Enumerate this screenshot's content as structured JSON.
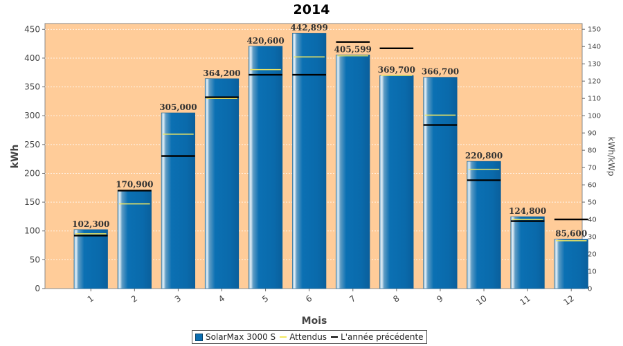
{
  "chart_data": {
    "type": "bar",
    "title": "2014",
    "xlabel": "Mois",
    "ylabel": "kWh",
    "ylabel_right": "kWh/kWp",
    "ylim": [
      0,
      460
    ],
    "ylim_right": [
      0,
      153.3
    ],
    "yticks": [
      0,
      50,
      100,
      150,
      200,
      250,
      300,
      350,
      400,
      450
    ],
    "yticks_right": [
      0,
      10,
      20,
      30,
      40,
      50,
      60,
      70,
      80,
      90,
      100,
      110,
      120,
      130,
      140,
      150
    ],
    "categories": [
      "1",
      "2",
      "3",
      "4",
      "5",
      "6",
      "7",
      "8",
      "9",
      "10",
      "11",
      "12"
    ],
    "series": [
      {
        "name": "SolarMax 3000 S",
        "kind": "bar",
        "color": "#0a6db0",
        "values": [
          102.3,
          170.9,
          305.0,
          364.2,
          420.6,
          442.899,
          405.599,
          369.7,
          366.7,
          220.8,
          124.8,
          85.6
        ],
        "labels": [
          "102,300",
          "170,900",
          "305,000",
          "364,200",
          "420,600",
          "442,899",
          "405,599",
          "369,700",
          "366,700",
          "220,800",
          "124,800",
          "85,600"
        ]
      },
      {
        "name": "Attendus",
        "kind": "marker",
        "color": "#f2e860",
        "values": [
          95,
          147,
          268,
          330,
          380,
          402,
          404,
          370,
          301,
          207,
          120,
          83
        ]
      },
      {
        "name": "L'année précédente",
        "kind": "marker",
        "color": "#000000",
        "values": [
          92,
          170,
          230,
          332,
          371,
          371,
          428,
          417,
          284,
          188,
          117,
          120
        ]
      }
    ],
    "plot_background": "#ffcc99",
    "grid": true,
    "legend_position": "bottom"
  }
}
